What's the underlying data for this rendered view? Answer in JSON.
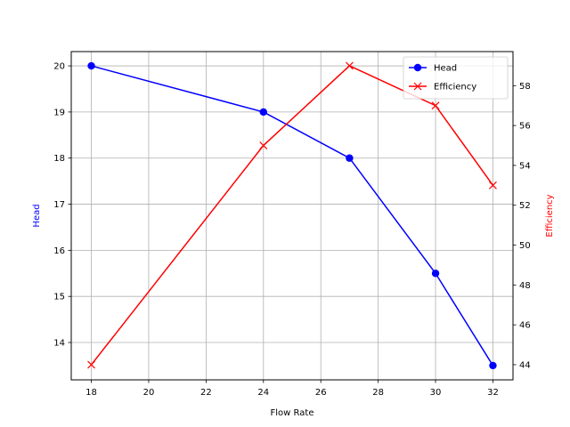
{
  "chart_data": {
    "type": "line",
    "title": "",
    "xlabel": "Flow Rate",
    "x": [
      18,
      24,
      27,
      30,
      32
    ],
    "xlim": [
      17.3,
      32.7
    ],
    "xticks": [
      18,
      20,
      22,
      24,
      26,
      28,
      30,
      32
    ],
    "grid": true,
    "legend_position": "upper right",
    "series": [
      {
        "name": "Head",
        "axis": "left",
        "values": [
          20,
          19,
          18,
          15.5,
          13.5
        ],
        "color": "#0000ff",
        "marker": "circle"
      },
      {
        "name": "Efficiency",
        "axis": "right",
        "values": [
          44,
          55,
          59,
          57,
          53
        ],
        "color": "#ff0000",
        "marker": "x"
      }
    ],
    "left_axis": {
      "label": "Head",
      "label_color": "#0000ff",
      "ylim": [
        13.19,
        20.31
      ],
      "ticks": [
        14,
        15,
        16,
        17,
        18,
        19,
        20
      ]
    },
    "right_axis": {
      "label": "Efficiency",
      "label_color": "#ff0000",
      "ylim": [
        43.24,
        59.71
      ],
      "ticks": [
        44,
        46,
        48,
        50,
        52,
        54,
        56,
        58
      ]
    }
  }
}
